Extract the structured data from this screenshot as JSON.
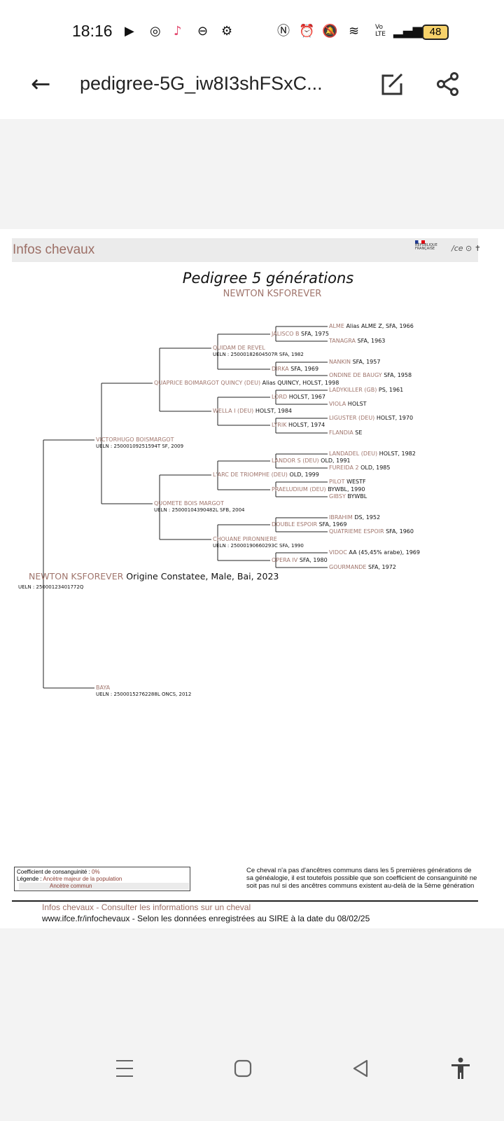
{
  "status_bar": {
    "time": "18:16",
    "battery": "48",
    "icons": [
      "youtube-icon",
      "instagram-icon",
      "tiktok-icon",
      "pokeball-icon",
      "gear-icon",
      "nfc-icon",
      "alarm-icon",
      "mute-icon",
      "wifi-icon",
      "volte-icon",
      "signal-icon",
      "battery-icon"
    ]
  },
  "app_bar": {
    "title": "pedigree-5G_iw8I3shFSxC...",
    "back_icon": "arrow-left-icon",
    "edit_icon": "edit-icon",
    "share_icon": "share-icon"
  },
  "document": {
    "header": "Infos chevaux",
    "logo_rf": "RÉPUBLIQUE FRANÇAISE",
    "logo_ifce": "ifce",
    "title": "Pedigree 5 générations",
    "subtitle": "NEWTON KSFOREVER",
    "subject": {
      "name": "NEWTON KSFOREVER",
      "details": "Origine Constatee, Male, Bai, 2023",
      "ueln": "UELN : 25000123401772Q"
    },
    "gen1": [
      {
        "name": "VICTORHUGO BOISMARGOT",
        "details": "",
        "ueln": "UELN : 25000109251594T SF, 2009"
      },
      {
        "name": "BAYA",
        "details": "",
        "ueln": "UELN : 25000152762288L ONCS, 2012"
      }
    ],
    "gen2": [
      {
        "name": "QUAPRICE BOIMARGOT QUINCY (DEU)",
        "details": "Alias QUINCY, HOLST, 1998",
        "ueln": ""
      },
      {
        "name": "QUOMETE BOIS MARGOT",
        "details": "",
        "ueln": "UELN : 25000104390482L SFB, 2004"
      }
    ],
    "gen3": [
      {
        "name": "QUIDAM DE REVEL",
        "details": "",
        "ueln": "UELN : 25000182604507R SFA, 1982"
      },
      {
        "name": "WELLA I (DEU)",
        "details": "HOLST, 1984",
        "ueln": ""
      },
      {
        "name": "L'ARC DE TRIOMPHE (DEU)",
        "details": "OLD, 1999",
        "ueln": ""
      },
      {
        "name": "CHOUANE PIRONNIERE",
        "details": "",
        "ueln": "UELN : 25000190660293C SFA, 1990"
      }
    ],
    "gen4": [
      {
        "name": "JALISCO B",
        "details": "SFA, 1975"
      },
      {
        "name": "DIRKA",
        "details": "SFA, 1969"
      },
      {
        "name": "LORD",
        "details": "HOLST, 1967"
      },
      {
        "name": "LYRIK",
        "details": "HOLST, 1974"
      },
      {
        "name": "LANDOR S (DEU)",
        "details": "OLD, 1991"
      },
      {
        "name": "PRAELUDIUM (DEU)",
        "details": "BYWBL, 1990"
      },
      {
        "name": "DOUBLE ESPOIR",
        "details": "SFA, 1969"
      },
      {
        "name": "OPERA IV",
        "details": "SFA, 1980"
      }
    ],
    "gen5": [
      {
        "name": "ALME",
        "details": "Alias ALME Z, SFA, 1966"
      },
      {
        "name": "TANAGRA",
        "details": "SFA, 1963"
      },
      {
        "name": "NANKIN",
        "details": "SFA, 1957"
      },
      {
        "name": "ONDINE DE BAUGY",
        "details": "SFA, 1958"
      },
      {
        "name": "LADYKILLER (GB)",
        "details": "PS, 1961"
      },
      {
        "name": "VIOLA",
        "details": "HOLST"
      },
      {
        "name": "LIGUSTER (DEU)",
        "details": "HOLST, 1970"
      },
      {
        "name": "FLANDIA",
        "details": "SE"
      },
      {
        "name": "LANDADEL (DEU)",
        "details": "HOLST, 1982"
      },
      {
        "name": "FUREIDA 2",
        "details": "OLD, 1985"
      },
      {
        "name": "PILOT",
        "details": "WESTF"
      },
      {
        "name": "GIBSY",
        "details": "BYWBL"
      },
      {
        "name": "IBRAHIM",
        "details": "DS, 1952"
      },
      {
        "name": "QUATRIEME ESPOIR",
        "details": "SFA, 1960"
      },
      {
        "name": "VIDOC",
        "details": "AA (45,45% arabe), 1969"
      },
      {
        "name": "GOURMANDE",
        "details": "SFA, 1972"
      }
    ],
    "legend": {
      "coef_label": "Coefficient de consanguinité : ",
      "coef_value": "0%",
      "legend_label": "Légende : ",
      "major": "Ancètre majeur de la population",
      "common": "Ancètre commun"
    },
    "note": "Ce cheval n'a pas d'ancêtres communs dans les 5 premières générations de sa généalogie, il est toutefois possible que son coefficient de consanguinité ne soit pas nul si des ancêtres communs existent au-delà de la 5ème génération",
    "footer_line1": "Infos chevaux - Consulter les informations sur un cheval",
    "footer_line2": "www.ifce.fr/infochevaux - Selon les données enregistrées au SIRE à la date du 08/02/25"
  },
  "colors": {
    "name": "#a0756c",
    "header": "#9c6f66"
  },
  "nav_bar": {
    "icons": [
      "recent-apps-icon",
      "home-icon",
      "back-icon",
      "accessibility-icon"
    ]
  }
}
